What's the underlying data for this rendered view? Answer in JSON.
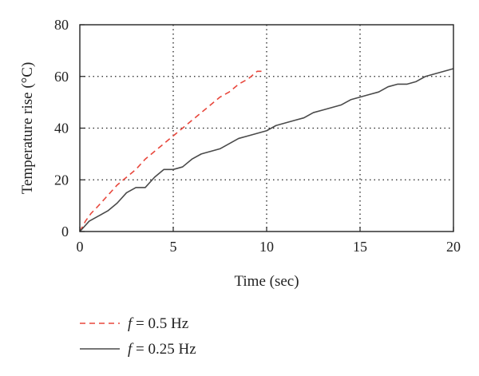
{
  "chart_data": {
    "type": "line",
    "xlabel": "Time (sec)",
    "ylabel": "Temperature rise (°C)",
    "xlim": [
      0,
      20
    ],
    "ylim": [
      0,
      80
    ],
    "xticks": [
      0,
      5,
      10,
      15,
      20
    ],
    "yticks": [
      0,
      20,
      40,
      60,
      80
    ],
    "xtick_labels": [
      "0",
      "5",
      "10",
      "15",
      "20"
    ],
    "ytick_labels": [
      "0",
      "20",
      "40",
      "60",
      "80"
    ],
    "grid": "dotted",
    "legend_placement": "bottom-left, below plot",
    "series": [
      {
        "name_symbol": "f",
        "name_rest": " = 0.5 Hz",
        "color": "#e8473c",
        "dash": "dashed",
        "x": [
          0,
          0.3,
          0.6,
          1.0,
          1.5,
          2.0,
          2.5,
          3.0,
          3.5,
          4.0,
          4.5,
          5.0,
          5.5,
          6.0,
          6.5,
          7.0,
          7.5,
          8.0,
          8.5,
          9.0,
          9.5,
          9.8
        ],
        "y": [
          0,
          4,
          7,
          10,
          14,
          18,
          21,
          24,
          28,
          31,
          34,
          37,
          40,
          43,
          46,
          49,
          52,
          54,
          57,
          59,
          62,
          62
        ]
      },
      {
        "name_symbol": "f",
        "name_rest": " = 0.25 Hz",
        "color": "#4a4a4a",
        "dash": "solid",
        "x": [
          0,
          0.5,
          1.0,
          1.5,
          2.0,
          2.5,
          3.0,
          3.5,
          4.0,
          4.5,
          5.0,
          5.5,
          6.0,
          6.5,
          7.0,
          7.5,
          8.0,
          8.5,
          9.0,
          9.5,
          10.0,
          10.5,
          11.0,
          11.5,
          12.0,
          12.5,
          13.0,
          13.5,
          14.0,
          14.5,
          15.0,
          15.5,
          16.0,
          16.5,
          17.0,
          17.5,
          18.0,
          18.5,
          19.0,
          19.5,
          20.0
        ],
        "y": [
          0,
          4,
          6,
          8,
          11,
          15,
          17,
          17,
          21,
          24,
          24,
          25,
          28,
          30,
          31,
          32,
          34,
          36,
          37,
          38,
          39,
          41,
          42,
          43,
          44,
          46,
          47,
          48,
          49,
          51,
          52,
          53,
          54,
          56,
          57,
          57,
          58,
          60,
          61,
          62,
          63
        ]
      }
    ]
  }
}
